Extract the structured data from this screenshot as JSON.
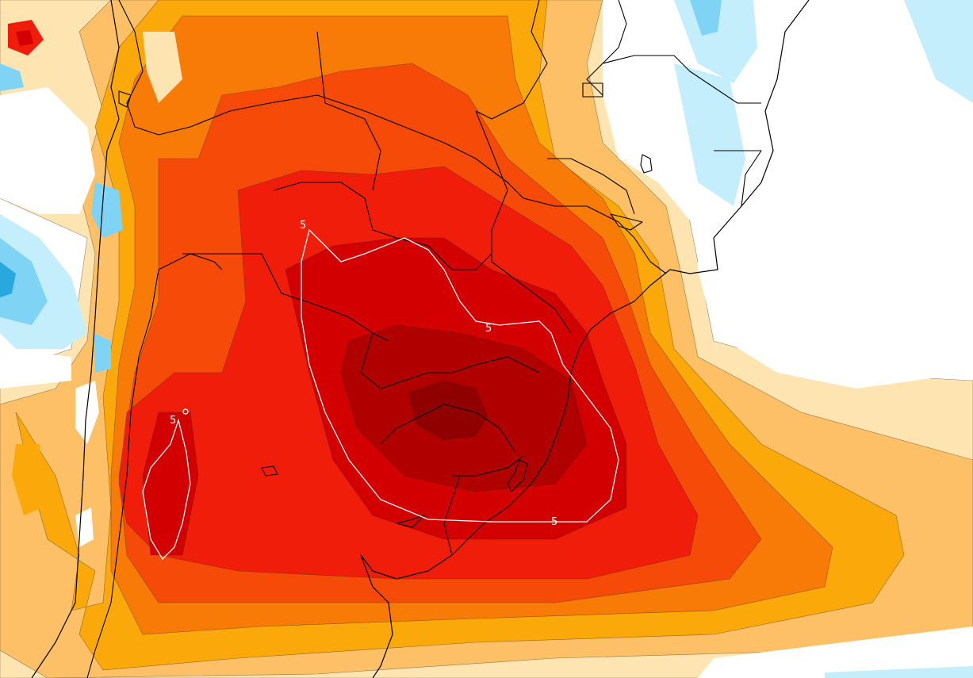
{
  "map": {
    "type": "filled-contour-anomaly-map",
    "contour_labels": [
      "5",
      "5",
      "5",
      "5"
    ],
    "colors": {
      "background": "#ffffff",
      "neg_dark": "#29a8e0",
      "neg_mid": "#7fd3f4",
      "neg_light": "#c4eefc",
      "pos_1": "#fde4b0",
      "pos_2": "#fdc067",
      "pos_3": "#fba90a",
      "pos_4": "#f87a07",
      "pos_5": "#f64a08",
      "pos_6": "#f01d0a",
      "pos_7": "#d20000",
      "pos_8": "#b00000",
      "pos_9": "#900000",
      "isoline": "#ffffff",
      "borders": "#000000"
    }
  }
}
